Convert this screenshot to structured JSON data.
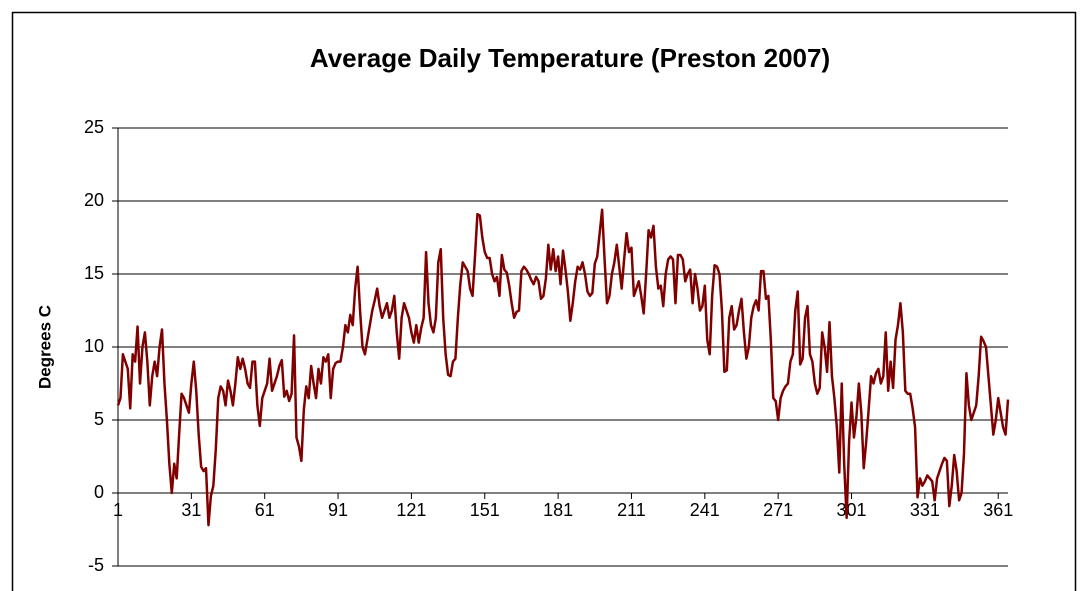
{
  "chart_data": {
    "type": "line",
    "title": "Average Daily Temperature (Preston 2007)",
    "ylabel": "Degrees C",
    "x": [
      1,
      2,
      3,
      4,
      5,
      6,
      7,
      8,
      9,
      10,
      11,
      12,
      13,
      14,
      15,
      16,
      17,
      18,
      19,
      20,
      21,
      22,
      23,
      24,
      25,
      26,
      27,
      28,
      29,
      30,
      31,
      32,
      33,
      34,
      35,
      36,
      37,
      38,
      39,
      40,
      41,
      42,
      43,
      44,
      45,
      46,
      47,
      48,
      49,
      50,
      51,
      52,
      53,
      54,
      55,
      56,
      57,
      58,
      59,
      60,
      61,
      62,
      63,
      64,
      65,
      66,
      67,
      68,
      69,
      70,
      71,
      72,
      73,
      74,
      75,
      76,
      77,
      78,
      79,
      80,
      81,
      82,
      83,
      84,
      85,
      86,
      87,
      88,
      89,
      90,
      91,
      92,
      93,
      94,
      95,
      96,
      97,
      98,
      99,
      100,
      101,
      102,
      103,
      104,
      105,
      106,
      107,
      108,
      109,
      110,
      111,
      112,
      113,
      114,
      115,
      116,
      117,
      118,
      119,
      120,
      121,
      122,
      123,
      124,
      125,
      126,
      127,
      128,
      129,
      130,
      131,
      132,
      133,
      134,
      135,
      136,
      137,
      138,
      139,
      140,
      141,
      142,
      143,
      144,
      145,
      146,
      147,
      148,
      149,
      150,
      151,
      152,
      153,
      154,
      155,
      156,
      157,
      158,
      159,
      160,
      161,
      162,
      163,
      164,
      165,
      166,
      167,
      168,
      169,
      170,
      171,
      172,
      173,
      174,
      175,
      176,
      177,
      178,
      179,
      180,
      181,
      182,
      183,
      184,
      185,
      186,
      187,
      188,
      189,
      190,
      191,
      192,
      193,
      194,
      195,
      196,
      197,
      198,
      199,
      200,
      201,
      202,
      203,
      204,
      205,
      206,
      207,
      208,
      209,
      210,
      211,
      212,
      213,
      214,
      215,
      216,
      217,
      218,
      219,
      220,
      221,
      222,
      223,
      224,
      225,
      226,
      227,
      228,
      229,
      230,
      231,
      232,
      233,
      234,
      235,
      236,
      237,
      238,
      239,
      240,
      241,
      242,
      243,
      244,
      245,
      246,
      247,
      248,
      249,
      250,
      251,
      252,
      253,
      254,
      255,
      256,
      257,
      258,
      259,
      260,
      261,
      262,
      263,
      264,
      265,
      266,
      267,
      268,
      269,
      270,
      271,
      272,
      273,
      274,
      275,
      276,
      277,
      278,
      279,
      280,
      281,
      282,
      283,
      284,
      285,
      286,
      287,
      288,
      289,
      290,
      291,
      292,
      293,
      294,
      295,
      296,
      297,
      298,
      299,
      300,
      301,
      302,
      303,
      304,
      305,
      306,
      307,
      308,
      309,
      310,
      311,
      312,
      313,
      314,
      315,
      316,
      317,
      318,
      319,
      320,
      321,
      322,
      323,
      324,
      325,
      326,
      327,
      328,
      329,
      330,
      331,
      332,
      333,
      334,
      335,
      336,
      337,
      338,
      339,
      340,
      341,
      342,
      343,
      344,
      345,
      346,
      347,
      348,
      349,
      350,
      351,
      352,
      353,
      354,
      355,
      356,
      357,
      358,
      359,
      360,
      361,
      362,
      363,
      364,
      365
    ],
    "series": [
      {
        "color": "#800000",
        "values": [
          6,
          6.5,
          9.5,
          9,
          8.5,
          5.8,
          9.5,
          9,
          11.4,
          7.5,
          10,
          11,
          9,
          6,
          8,
          9,
          8,
          10,
          11.2,
          7.5,
          5,
          2,
          0,
          2,
          1,
          4,
          6.8,
          6.5,
          6,
          5.5,
          7.5,
          9,
          7,
          4,
          1.8,
          1.5,
          1.7,
          -2.2,
          -0.2,
          0.5,
          3,
          6.5,
          7.3,
          7,
          6,
          7.7,
          7,
          6,
          7.5,
          9.3,
          8.5,
          9.2,
          8.5,
          7.5,
          7.2,
          9,
          9,
          6,
          4.6,
          6.5,
          7,
          7.5,
          9.2,
          7,
          7.5,
          8,
          8.7,
          9.1,
          6.6,
          7,
          6.3,
          6.8,
          10.8,
          3.8,
          3.2,
          2.2,
          5.7,
          7.3,
          6.5,
          8.7,
          7.5,
          6.5,
          8.5,
          7.5,
          9.3,
          9,
          9.5,
          6.5,
          8.5,
          8.9,
          9,
          9,
          10,
          11.5,
          11,
          12.2,
          11.5,
          14,
          15.5,
          12.5,
          10,
          9.5,
          10.5,
          11.5,
          12.5,
          13.2,
          14,
          12.8,
          12,
          12.5,
          13,
          12,
          12.5,
          13.5,
          11,
          9.2,
          12,
          13,
          12.5,
          12,
          11,
          10.3,
          11.5,
          10.3,
          11.3,
          12,
          16.5,
          13,
          11.5,
          11,
          12,
          15.8,
          16.7,
          12,
          9.5,
          8.1,
          8,
          9,
          9.2,
          12,
          14.3,
          15.8,
          15.5,
          15.2,
          14,
          13.5,
          16.2,
          19.1,
          19,
          17.5,
          16.5,
          16.1,
          16.1,
          15,
          14.5,
          14.8,
          13.5,
          16.3,
          15.3,
          15.1,
          14.2,
          13,
          12,
          12.4,
          12.5,
          15.2,
          15.5,
          15.3,
          15,
          14.6,
          14.3,
          14.8,
          14.5,
          13.3,
          13.5,
          14.7,
          17,
          15.3,
          16.7,
          15.2,
          16.2,
          14.3,
          16.6,
          15.3,
          13.8,
          11.8,
          13,
          14.5,
          15.5,
          15.3,
          15.8,
          15,
          13.8,
          13.5,
          13.7,
          15.7,
          16.2,
          17.8,
          19.4,
          16,
          13,
          13.5,
          15,
          15.8,
          17,
          15.5,
          14,
          16,
          17.8,
          16.5,
          16.8,
          13.5,
          14,
          14.5,
          13.5,
          12.3,
          15,
          18,
          17.5,
          18.3,
          15.5,
          14,
          14.2,
          12.8,
          15,
          16,
          16.2,
          16,
          13,
          16.3,
          16.3,
          16,
          14.5,
          15,
          15.3,
          13,
          15,
          14,
          12.5,
          12.8,
          14.2,
          10.5,
          9.5,
          13.5,
          15.6,
          15.5,
          15,
          12.5,
          8.3,
          8.4,
          12,
          12.8,
          11.2,
          11.5,
          12.5,
          13.3,
          11,
          9.2,
          10,
          12,
          12.8,
          13.2,
          12.5,
          15.2,
          15.2,
          13.3,
          13.5,
          10.5,
          6.5,
          6.3,
          5,
          6.5,
          7,
          7.3,
          7.5,
          9,
          9.5,
          12.5,
          13.8,
          8.8,
          9.2,
          12,
          12.8,
          9.5,
          9,
          7.5,
          6.8,
          7.2,
          11,
          10,
          8.3,
          11.7,
          8,
          6.5,
          4.5,
          1.4,
          7.5,
          2,
          -1.7,
          3.5,
          6.2,
          3.8,
          5.2,
          7.5,
          5.5,
          1.7,
          3.5,
          5.7,
          8,
          7.5,
          8.2,
          8.5,
          7.5,
          8,
          11,
          7,
          9,
          7.2,
          10.5,
          11.5,
          13,
          11,
          7,
          6.8,
          6.8,
          5.8,
          4.5,
          -0.3,
          1,
          0.5,
          0.8,
          1.2,
          1,
          0.8,
          -0.5,
          1,
          1.5,
          2,
          2.4,
          2.2,
          -0.9,
          0.5,
          2.6,
          1.5,
          -0.5,
          0,
          2.7,
          8.2,
          6,
          5,
          5.5,
          6,
          8,
          10.7,
          10.4,
          10,
          8,
          6,
          4,
          5,
          6.5,
          5.5,
          4.5,
          4,
          6.4
        ]
      }
    ],
    "xlim": [
      1,
      365
    ],
    "xticks": [
      1,
      31,
      61,
      91,
      121,
      151,
      181,
      211,
      241,
      271,
      301,
      331,
      361
    ],
    "ylim": [
      -5,
      25
    ],
    "yticks": [
      -5,
      0,
      5,
      10,
      15,
      20,
      25
    ],
    "grid": true
  }
}
